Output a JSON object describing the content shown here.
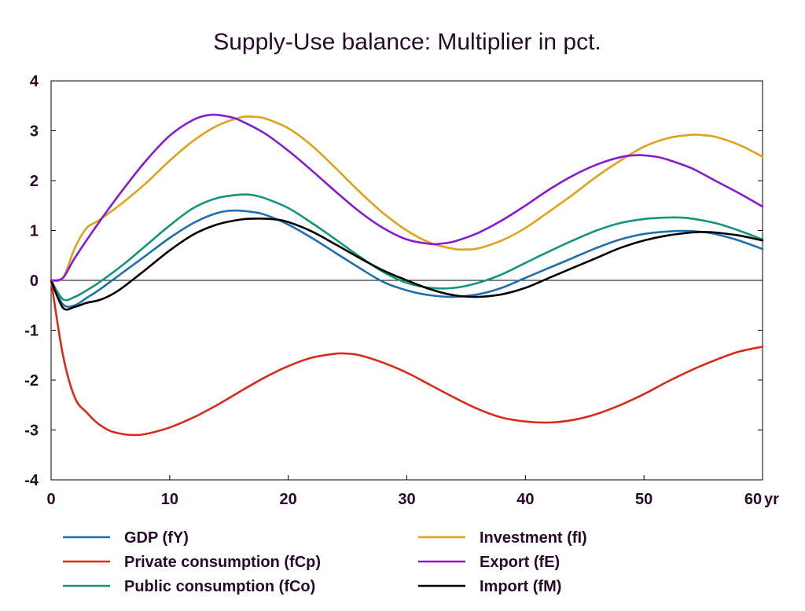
{
  "chart_data": {
    "type": "line",
    "title": "Supply-Use balance: Multiplier in pct.",
    "x_unit_label": "yr",
    "xlim": [
      0,
      60
    ],
    "ylim": [
      -4,
      4
    ],
    "x_ticks": [
      0,
      10,
      20,
      30,
      40,
      50,
      60
    ],
    "y_ticks": [
      -4,
      -3,
      -2,
      -1,
      0,
      1,
      2,
      3,
      4
    ],
    "zero_line": true,
    "grid": false,
    "legend_placement": "bottom",
    "series": [
      {
        "name": "GDP (fY)",
        "color": "#1f6fae",
        "x": [
          0,
          1,
          2,
          3,
          4,
          6,
          8,
          10,
          12,
          14,
          15.5,
          17,
          18,
          20,
          22,
          24,
          26,
          28,
          30,
          32,
          34,
          36,
          38,
          40,
          42,
          44,
          46,
          48,
          50,
          52,
          53.5,
          55,
          56,
          58,
          60
        ],
        "y": [
          0,
          -0.48,
          -0.5,
          -0.35,
          -0.2,
          0.15,
          0.5,
          0.85,
          1.15,
          1.35,
          1.4,
          1.37,
          1.32,
          1.12,
          0.85,
          0.55,
          0.25,
          -0.03,
          -0.2,
          -0.3,
          -0.33,
          -0.28,
          -0.15,
          0.05,
          0.25,
          0.45,
          0.65,
          0.82,
          0.93,
          0.98,
          0.99,
          0.97,
          0.93,
          0.8,
          0.63
        ]
      },
      {
        "name": "Investment (fI)",
        "color": "#e0a21a",
        "x": [
          0,
          1,
          2,
          3,
          4,
          6,
          8,
          10,
          12,
          14,
          16,
          17,
          18,
          20,
          22,
          24,
          26,
          28,
          30,
          32,
          34,
          35,
          36,
          38,
          40,
          42,
          44,
          46,
          48,
          50,
          52,
          54,
          55,
          56,
          58,
          60
        ],
        "y": [
          0,
          0.05,
          0.65,
          1.05,
          1.2,
          1.55,
          1.95,
          2.4,
          2.8,
          3.1,
          3.27,
          3.28,
          3.25,
          3.05,
          2.7,
          2.25,
          1.78,
          1.35,
          1.0,
          0.75,
          0.63,
          0.62,
          0.64,
          0.8,
          1.05,
          1.38,
          1.72,
          2.08,
          2.4,
          2.68,
          2.85,
          2.92,
          2.91,
          2.88,
          2.72,
          2.48
        ]
      },
      {
        "name": "Private consumption (fCp)",
        "color": "#d92b1c",
        "x": [
          0,
          1,
          2,
          3,
          4,
          5,
          6,
          7,
          8,
          10,
          12,
          14,
          16,
          18,
          20,
          22,
          24,
          25,
          26,
          28,
          30,
          32,
          34,
          36,
          38,
          40,
          42,
          44,
          46,
          48,
          50,
          52,
          54,
          56,
          58,
          60
        ],
        "y": [
          0,
          -1.5,
          -2.35,
          -2.65,
          -2.88,
          -3.02,
          -3.08,
          -3.1,
          -3.08,
          -2.95,
          -2.75,
          -2.5,
          -2.22,
          -1.95,
          -1.72,
          -1.55,
          -1.47,
          -1.47,
          -1.5,
          -1.65,
          -1.85,
          -2.1,
          -2.35,
          -2.58,
          -2.75,
          -2.83,
          -2.85,
          -2.8,
          -2.68,
          -2.5,
          -2.28,
          -2.03,
          -1.8,
          -1.6,
          -1.43,
          -1.33
        ]
      },
      {
        "name": "Export (fE)",
        "color": "#8a1ad0",
        "x": [
          0,
          1,
          2,
          4,
          6,
          8,
          10,
          12,
          13.5,
          15,
          16,
          18,
          20,
          22,
          24,
          26,
          28,
          30,
          32,
          33,
          34,
          36,
          38,
          40,
          42,
          44,
          46,
          48,
          49.5,
          51,
          52,
          54,
          56,
          58,
          60
        ],
        "y": [
          0,
          0.05,
          0.45,
          1.15,
          1.8,
          2.4,
          2.9,
          3.22,
          3.32,
          3.28,
          3.2,
          2.95,
          2.6,
          2.2,
          1.78,
          1.38,
          1.05,
          0.82,
          0.73,
          0.74,
          0.78,
          0.95,
          1.2,
          1.5,
          1.82,
          2.1,
          2.32,
          2.47,
          2.51,
          2.48,
          2.42,
          2.25,
          2.0,
          1.75,
          1.48
        ]
      },
      {
        "name": "Public consumption (fCo)",
        "color": "#13967a",
        "x": [
          0,
          1,
          2,
          3,
          4,
          6,
          8,
          10,
          12,
          14,
          16,
          17,
          18,
          20,
          22,
          24,
          26,
          28,
          30,
          32,
          34,
          36,
          38,
          40,
          42,
          44,
          46,
          48,
          50,
          52,
          53,
          54,
          56,
          58,
          60
        ],
        "y": [
          0,
          -0.38,
          -0.33,
          -0.2,
          -0.05,
          0.3,
          0.7,
          1.1,
          1.45,
          1.65,
          1.72,
          1.71,
          1.65,
          1.45,
          1.15,
          0.82,
          0.48,
          0.17,
          -0.05,
          -0.15,
          -0.15,
          -0.05,
          0.12,
          0.35,
          0.58,
          0.8,
          1.0,
          1.15,
          1.23,
          1.26,
          1.26,
          1.24,
          1.15,
          1.0,
          0.82
        ]
      },
      {
        "name": "Import (fM)",
        "color": "#000000",
        "x": [
          0,
          1,
          2,
          3,
          4,
          5,
          6,
          8,
          10,
          12,
          14,
          16,
          17.5,
          19,
          20,
          22,
          24,
          26,
          28,
          30,
          32,
          34,
          36,
          38,
          40,
          42,
          44,
          46,
          48,
          50,
          52,
          54,
          55,
          56,
          58,
          60
        ],
        "y": [
          0,
          -0.55,
          -0.53,
          -0.45,
          -0.4,
          -0.3,
          -0.15,
          0.22,
          0.6,
          0.92,
          1.12,
          1.22,
          1.24,
          1.22,
          1.17,
          0.98,
          0.72,
          0.45,
          0.2,
          0.0,
          -0.18,
          -0.3,
          -0.33,
          -0.28,
          -0.15,
          0.05,
          0.25,
          0.45,
          0.65,
          0.8,
          0.9,
          0.96,
          0.97,
          0.96,
          0.9,
          0.8
        ]
      }
    ]
  }
}
